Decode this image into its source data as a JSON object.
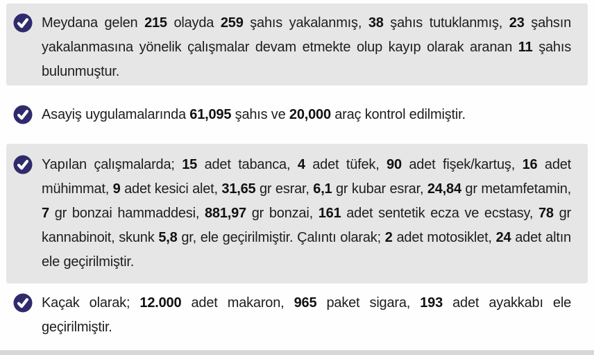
{
  "page": {
    "accent_color": "#2e2a6b",
    "band_gray_color": "#e7e6e6",
    "bottom_strip_color": "#d8d8d8",
    "text_color": "#1d1d1d",
    "icon": "check-circle"
  },
  "bullets": [
    {
      "band": "gray",
      "full_text": "Meydana gelen 215 olayda 259 şahıs yakalanmış, 38 şahıs tutuklanmış, 23 şahsın yakalanmasına yönelik çalışmalar devam etmekte olup kayıp olarak aranan 11 şahıs bulunmuştur.",
      "segments": [
        {
          "t": "Meydana gelen ",
          "b": false
        },
        {
          "t": "215",
          "b": true
        },
        {
          "t": " olayda ",
          "b": false
        },
        {
          "t": "259",
          "b": true
        },
        {
          "t": " şahıs yakalanmış, ",
          "b": false
        },
        {
          "t": "38",
          "b": true
        },
        {
          "t": " şahıs tutuklanmış, ",
          "b": false
        },
        {
          "t": "23",
          "b": true
        },
        {
          "t": " şahsın yakalanmasına yönelik çalışmalar devam etmekte olup kayıp olarak aranan ",
          "b": false
        },
        {
          "t": "11",
          "b": true
        },
        {
          "t": " şahıs bulunmuştur.",
          "b": false
        }
      ]
    },
    {
      "band": "white",
      "full_text": "Asayiş uygulamalarında 61,095 şahıs ve 20,000 araç kontrol edilmiştir.",
      "segments": [
        {
          "t": "Asayiş uygulamalarında ",
          "b": false
        },
        {
          "t": "61,095",
          "b": true
        },
        {
          "t": " şahıs ve ",
          "b": false
        },
        {
          "t": "20,000",
          "b": true
        },
        {
          "t": " araç kontrol edilmiştir.",
          "b": false
        }
      ]
    },
    {
      "band": "gray",
      "full_text": "Yapılan çalışmalarda; 15 adet tabanca, 4 adet tüfek, 90 adet fişek/kartuş, 16 adet mühimmat, 9 adet kesici alet, 31,65 gr esrar, 6,1 gr kubar esrar, 24,84 gr metamfetamin, 7 gr bonzai hammaddesi, 881,97 gr bonzai, 161 adet sentetik ecza ve ecstasy, 78 gr kannabinoit, skunk 5,8 gr, ele geçirilmiştir. Çalıntı olarak; 2 adet motosiklet, 24 adet altın ele geçirilmiştir.",
      "segments": [
        {
          "t": "Yapılan çalışmalarda; ",
          "b": false
        },
        {
          "t": "15",
          "b": true
        },
        {
          "t": " adet tabanca, ",
          "b": false
        },
        {
          "t": "4",
          "b": true
        },
        {
          "t": " adet tüfek, ",
          "b": false
        },
        {
          "t": "90",
          "b": true
        },
        {
          "t": " adet fişek/kartuş, ",
          "b": false
        },
        {
          "t": "16",
          "b": true
        },
        {
          "t": " adet mühimmat, ",
          "b": false
        },
        {
          "t": "9",
          "b": true
        },
        {
          "t": " adet kesici alet, ",
          "b": false
        },
        {
          "t": "31,65",
          "b": true
        },
        {
          "t": " gr esrar, ",
          "b": false
        },
        {
          "t": "6,1",
          "b": true
        },
        {
          "t": " gr kubar esrar, ",
          "b": false
        },
        {
          "t": "24,84",
          "b": true
        },
        {
          "t": " gr metamfetamin, ",
          "b": false
        },
        {
          "t": "7",
          "b": true
        },
        {
          "t": " gr bonzai hammaddesi, ",
          "b": false
        },
        {
          "t": "881,97",
          "b": true
        },
        {
          "t": " gr bonzai, ",
          "b": false
        },
        {
          "t": "161",
          "b": true
        },
        {
          "t": " adet sentetik ecza ve ecstasy, ",
          "b": false
        },
        {
          "t": "78",
          "b": true
        },
        {
          "t": " gr kannabinoit, skunk ",
          "b": false
        },
        {
          "t": "5,8",
          "b": true
        },
        {
          "t": " gr, ele geçirilmiştir. Çalıntı olarak; ",
          "b": false
        },
        {
          "t": "2",
          "b": true
        },
        {
          "t": " adet motosiklet, ",
          "b": false
        },
        {
          "t": "24",
          "b": true
        },
        {
          "t": " adet altın ele geçirilmiştir.",
          "b": false
        }
      ]
    },
    {
      "band": "white",
      "full_text": "Kaçak olarak; 12.000 adet makaron, 965 paket sigara, 193 adet ayakkabı ele geçirilmiştir.",
      "segments": [
        {
          "t": "Kaçak olarak; ",
          "b": false
        },
        {
          "t": "12.000",
          "b": true
        },
        {
          "t": " adet makaron, ",
          "b": false
        },
        {
          "t": "965",
          "b": true
        },
        {
          "t": " paket sigara, ",
          "b": false
        },
        {
          "t": "193",
          "b": true
        },
        {
          "t": " adet ayakkabı ele geçirilmiştir.",
          "b": false
        }
      ]
    }
  ]
}
